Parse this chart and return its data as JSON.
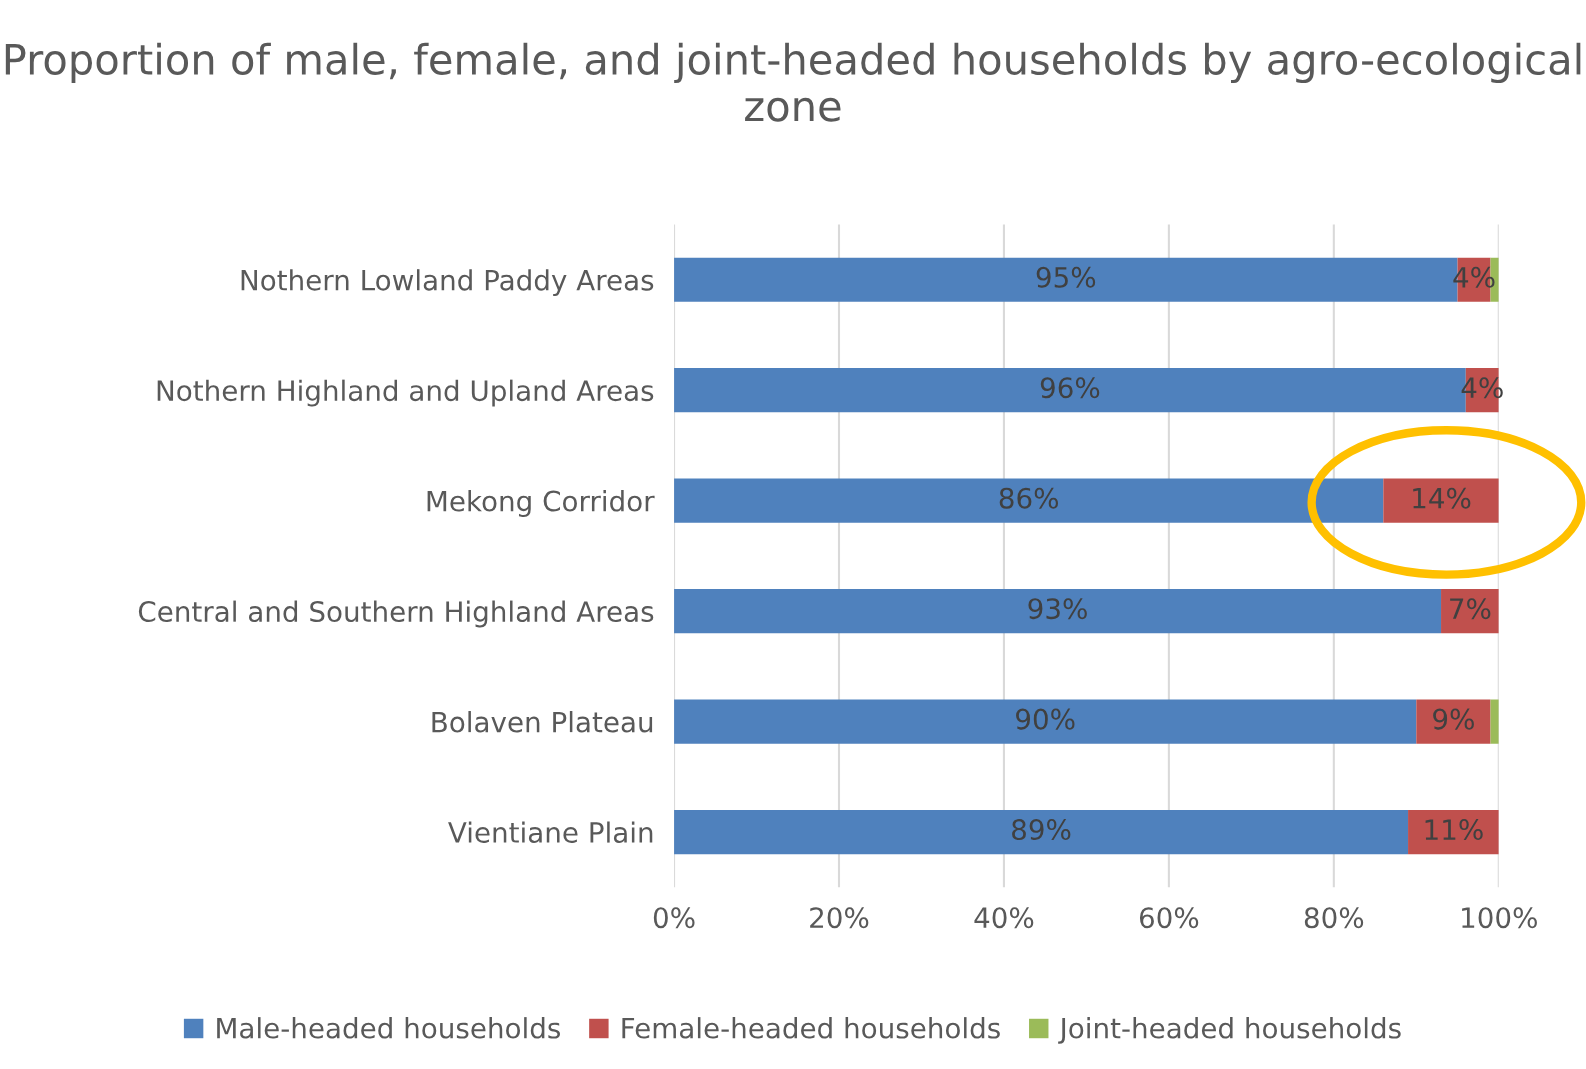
{
  "chart_data": {
    "type": "bar",
    "orientation": "horizontal",
    "stacked": true,
    "title": "Proportion of male, female, and joint-headed households by agro-ecological zone",
    "categories": [
      "Nothern Lowland Paddy Areas",
      "Nothern Highland and Upland Areas",
      "Mekong Corridor",
      "Central and Southern Highland Areas",
      "Bolaven Plateau",
      "Vientiane Plain"
    ],
    "series": [
      {
        "name": "Male-headed households",
        "color": "#4f81bd",
        "values": [
          95,
          96,
          86,
          93,
          90,
          89
        ],
        "value_labels": [
          "95%",
          "96%",
          "86%",
          "93%",
          "90%",
          "89%"
        ]
      },
      {
        "name": "Female-headed households",
        "color": "#c0504d",
        "values": [
          4,
          4,
          14,
          7,
          9,
          11
        ],
        "value_labels": [
          "4%",
          "4%",
          "14%",
          "7%",
          "9%",
          "11%"
        ]
      },
      {
        "name": "Joint-headed households",
        "color": "#9bbb59",
        "values": [
          1,
          0,
          0,
          0,
          1,
          0
        ],
        "value_labels": [
          null,
          null,
          null,
          null,
          null,
          null
        ]
      }
    ],
    "xlim": [
      0,
      100
    ],
    "xticks": [
      {
        "value": 0,
        "label": "0%"
      },
      {
        "value": 20,
        "label": "20%"
      },
      {
        "value": 40,
        "label": "40%"
      },
      {
        "value": 60,
        "label": "60%"
      },
      {
        "value": 80,
        "label": "80%"
      },
      {
        "value": 100,
        "label": "100%"
      }
    ],
    "grid": "x",
    "legend": "bottom"
  }
}
